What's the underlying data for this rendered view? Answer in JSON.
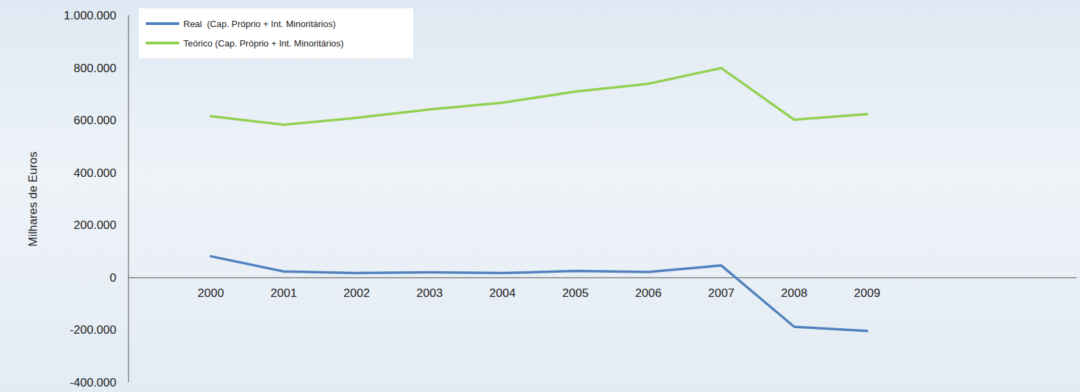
{
  "chart_data": {
    "type": "line",
    "categories": [
      "2000",
      "2001",
      "2002",
      "2003",
      "2004",
      "2005",
      "2006",
      "2007",
      "2008",
      "2009"
    ],
    "series": [
      {
        "name": "Real  (Cap. Próprio + Int. Minoritários)",
        "color": "#4f81bd",
        "values": [
          82000,
          24000,
          18000,
          21000,
          18000,
          26000,
          22000,
          47000,
          -187000,
          -203000
        ]
      },
      {
        "name": "Teórico (Cap. Próprio + Int. Minoritários)",
        "color": "#92d050",
        "values": [
          616000,
          584000,
          610000,
          642000,
          668000,
          710000,
          740000,
          800000,
          603000,
          624000
        ]
      }
    ],
    "y_label": "Milhares de Euros",
    "ylim": [
      -400000,
      1000000
    ],
    "yticks": [
      {
        "value": -400000,
        "label": "-400.000"
      },
      {
        "value": -200000,
        "label": "-200.000"
      },
      0,
      {
        "value": 200000,
        "label": "200.000"
      },
      {
        "value": 400000,
        "label": "400.000"
      },
      {
        "value": 600000,
        "label": "600.000"
      },
      {
        "value": 800000,
        "label": "800.000"
      },
      {
        "value": 1000000,
        "label": "1.000.000"
      }
    ],
    "grid": false,
    "legend": "top-left"
  }
}
